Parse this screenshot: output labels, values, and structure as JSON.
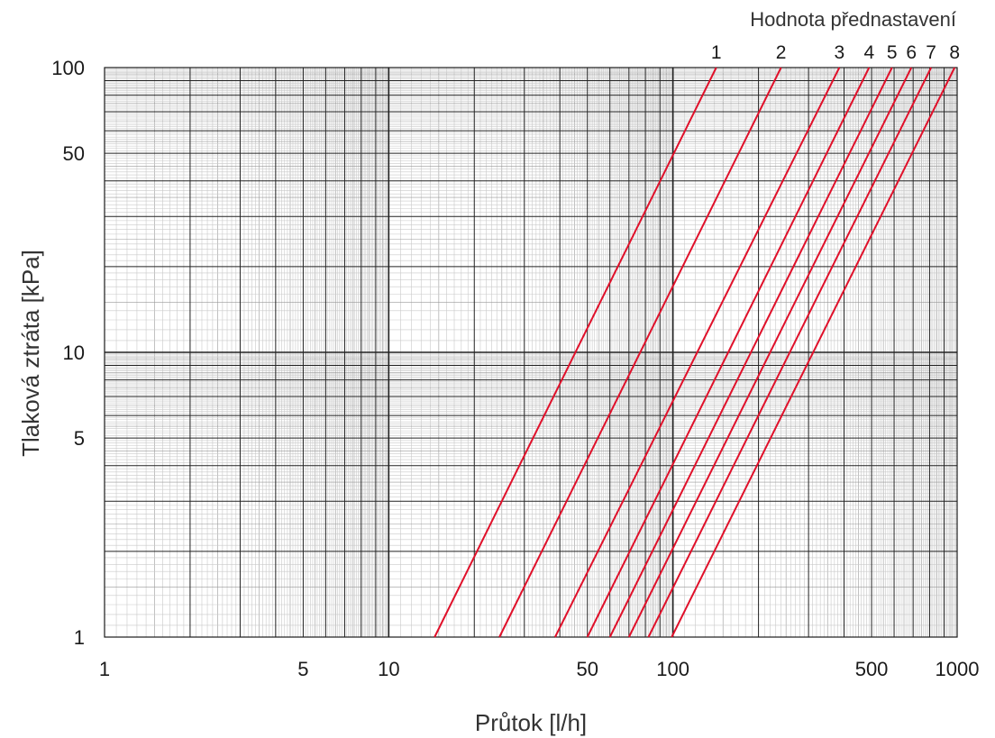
{
  "chart_data": {
    "type": "line",
    "title": "",
    "xlabel": "Průtok  [l/h]",
    "ylabel": "Tlaková ztráta  [kPa]",
    "legend_title": "Hodnota přednastavení",
    "x_scale": "log",
    "y_scale": "log",
    "xlim": [
      1,
      1000
    ],
    "ylim": [
      1,
      100
    ],
    "grid": true,
    "x_tick_labels": [
      {
        "value": 1,
        "label": "1"
      },
      {
        "value": 5,
        "label": "5"
      },
      {
        "value": 10,
        "label": "10"
      },
      {
        "value": 50,
        "label": "50"
      },
      {
        "value": 100,
        "label": "100"
      },
      {
        "value": 500,
        "label": "500"
      },
      {
        "value": 1000,
        "label": "1000"
      }
    ],
    "y_tick_labels": [
      {
        "value": 1,
        "label": "1"
      },
      {
        "value": 5,
        "label": "5"
      },
      {
        "value": 10,
        "label": "10"
      },
      {
        "value": 50,
        "label": "50"
      },
      {
        "value": 100,
        "label": "100"
      }
    ],
    "line_color": "#e0102a",
    "series": [
      {
        "name": "1",
        "x": [
          14.5,
          142
        ],
        "y": [
          1,
          100
        ]
      },
      {
        "name": "2",
        "x": [
          24.5,
          240
        ],
        "y": [
          1,
          100
        ]
      },
      {
        "name": "3",
        "x": [
          38.5,
          385
        ],
        "y": [
          1,
          100
        ]
      },
      {
        "name": "4",
        "x": [
          50,
          490
        ],
        "y": [
          1,
          100
        ]
      },
      {
        "name": "5",
        "x": [
          60,
          590
        ],
        "y": [
          1,
          100
        ]
      },
      {
        "name": "6",
        "x": [
          70,
          690
        ],
        "y": [
          1,
          100
        ]
      },
      {
        "name": "7",
        "x": [
          82,
          810
        ],
        "y": [
          1,
          100
        ]
      },
      {
        "name": "8",
        "x": [
          99,
          980
        ],
        "y": [
          1,
          100
        ]
      }
    ]
  }
}
